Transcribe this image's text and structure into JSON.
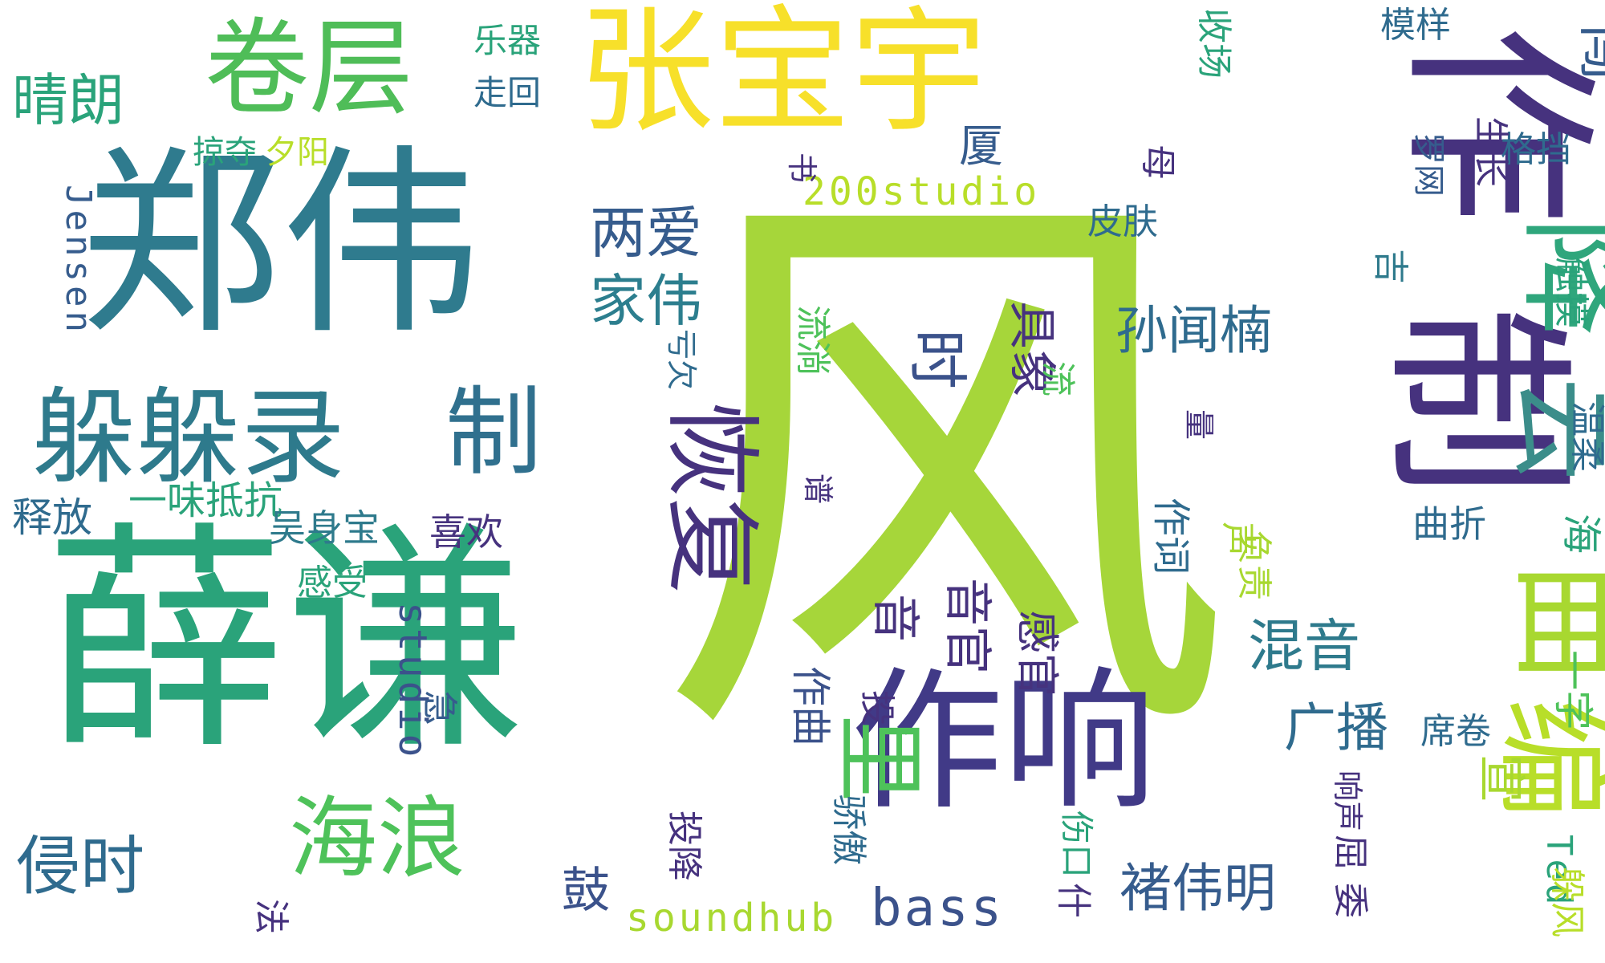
{
  "colors": {
    "background": "#ffffff",
    "palette": [
      "#440154",
      "#46337e",
      "#365c8d",
      "#277f8e",
      "#1fa187",
      "#4ac16d",
      "#a0da39",
      "#fde725"
    ]
  },
  "words": [
    {
      "text": "风",
      "color": "#a6d63a"
    },
    {
      "text": "薛谦",
      "color": "#2aa37a"
    },
    {
      "text": "郑伟",
      "color": "#2f7b8e"
    },
    {
      "text": "张宝宇",
      "color": "#f7e02a"
    },
    {
      "text": "作响",
      "color": "#413a87"
    },
    {
      "text": "作",
      "color": "#46327e"
    },
    {
      "text": "制",
      "color": "#46327e"
    },
    {
      "text": "降",
      "color": "#2fa67c"
    },
    {
      "text": "卷层",
      "color": "#4fbd58"
    },
    {
      "text": "躲躲录",
      "color": "#2e7a8c"
    },
    {
      "text": "制",
      "color": "#30708e"
    },
    {
      "text": "恢复",
      "color": "#46327e"
    },
    {
      "text": "海浪",
      "color": "#4ec25a"
    },
    {
      "text": "云",
      "color": "#3b8d8a"
    },
    {
      "text": "曲",
      "color": "#a8d830"
    },
    {
      "text": "编",
      "color": "#b8de29"
    },
    {
      "text": "里",
      "color": "#4ec25a"
    },
    {
      "text": "两爱",
      "color": "#365c8d"
    },
    {
      "text": "家伟",
      "color": "#2c7e8e"
    },
    {
      "text": "时",
      "color": "#3b528b"
    },
    {
      "text": "具象",
      "color": "#46327e"
    },
    {
      "text": "孙闻楠",
      "color": "#2f6b8e"
    },
    {
      "text": "混音",
      "color": "#2e7a8c"
    },
    {
      "text": "广播",
      "color": "#2f6b8e"
    },
    {
      "text": "褚伟明",
      "color": "#365c8d"
    },
    {
      "text": "侵时",
      "color": "#2f6b8e"
    },
    {
      "text": "晴朗",
      "color": "#2aa37a"
    },
    {
      "text": "厦",
      "color": "#365c8d"
    },
    {
      "text": "200studio",
      "color": "#b8de29"
    },
    {
      "text": "soundhub",
      "color": "#a8d830"
    },
    {
      "text": "bass",
      "color": "#3b528b"
    },
    {
      "text": "studio",
      "color": "#3b528b"
    },
    {
      "text": "Jensen",
      "color": "#365c8d"
    },
    {
      "text": "Ted",
      "color": "#2aa37a"
    },
    {
      "text": "一味抵抗",
      "color": "#2aa37a"
    },
    {
      "text": "释放",
      "color": "#2f6b8e"
    },
    {
      "text": "吴身宝",
      "color": "#2e7a8c"
    },
    {
      "text": "喜欢",
      "color": "#46327e"
    },
    {
      "text": "感受",
      "color": "#2aa37a"
    },
    {
      "text": "掠夺",
      "color": "#2aa37a"
    },
    {
      "text": "夕阳",
      "color": "#b8de29"
    },
    {
      "text": "乐器",
      "color": "#2aa37a"
    },
    {
      "text": "走回",
      "color": "#2f6b8e"
    },
    {
      "text": "收场",
      "color": "#2aa37a"
    },
    {
      "text": "模样",
      "color": "#2f6b8e"
    },
    {
      "text": "闯",
      "color": "#365c8d"
    },
    {
      "text": "格挡",
      "color": "#2f6b8e"
    },
    {
      "text": "生长",
      "color": "#46327e"
    },
    {
      "text": "罗网",
      "color": "#365c8d"
    },
    {
      "text": "母",
      "color": "#46327e"
    },
    {
      "text": "皮肤",
      "color": "#2f6b8e"
    },
    {
      "text": "吉",
      "color": "#2e7a8c"
    },
    {
      "text": "触摸",
      "color": "#2aa37a"
    },
    {
      "text": "温柔",
      "color": "#2f6b8e"
    },
    {
      "text": "海",
      "color": "#2aa37a"
    },
    {
      "text": "曲折",
      "color": "#2f6b8e"
    },
    {
      "text": "一字",
      "color": "#4ec25a"
    },
    {
      "text": "宣",
      "color": "#a8d830"
    },
    {
      "text": "席卷",
      "color": "#2f6b8e"
    },
    {
      "text": "响声",
      "color": "#46327e"
    },
    {
      "text": "屈",
      "color": "#46327e"
    },
    {
      "text": "委",
      "color": "#46327e"
    },
    {
      "text": "躲风",
      "color": "#b8de29"
    },
    {
      "text": "负责",
      "color": "#a8d830"
    },
    {
      "text": "声",
      "color": "#a8d830"
    },
    {
      "text": "作词",
      "color": "#2f6b8e"
    },
    {
      "text": "量",
      "color": "#46327e"
    },
    {
      "text": "流",
      "color": "#4ec25a"
    },
    {
      "text": "流淌",
      "color": "#4ec25a"
    },
    {
      "text": "亏欠",
      "color": "#2f6b8e"
    },
    {
      "text": "音",
      "color": "#46327e"
    },
    {
      "text": "音官",
      "color": "#46327e"
    },
    {
      "text": "感官",
      "color": "#46327e"
    },
    {
      "text": "作曲",
      "color": "#3b528b"
    },
    {
      "text": "投",
      "color": "#46327e"
    },
    {
      "text": "投降",
      "color": "#46327e"
    },
    {
      "text": "骄傲",
      "color": "#2f6b8e"
    },
    {
      "text": "伤口",
      "color": "#2aa37a"
    },
    {
      "text": "什",
      "color": "#46327e"
    },
    {
      "text": "鼓",
      "color": "#3b528b"
    },
    {
      "text": "急",
      "color": "#365c8d"
    },
    {
      "text": "法",
      "color": "#46327e"
    },
    {
      "text": "谱",
      "color": "#46327e"
    },
    {
      "text": "书",
      "color": "#46327e"
    },
    {
      "text": "放",
      "color": "#2aa37a"
    }
  ]
}
